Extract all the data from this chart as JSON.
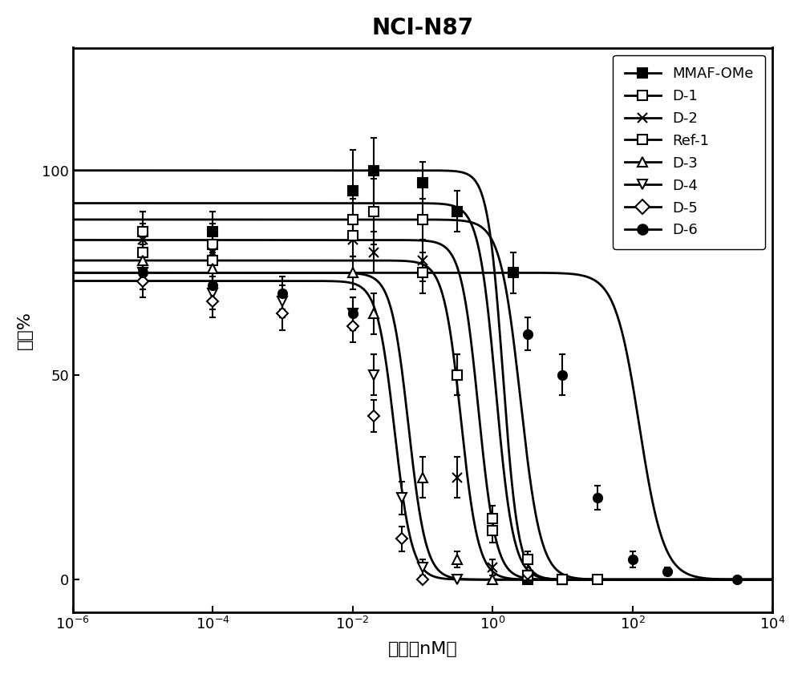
{
  "title": "NCI-N87",
  "xlabel": "浓度（nM）",
  "ylabel": "活力%",
  "xlim_log": [
    -6,
    4
  ],
  "ylim": [
    -8,
    130
  ],
  "yticks": [
    0,
    50,
    100
  ],
  "series": [
    {
      "name": "MMAF-OMe",
      "marker": "s",
      "filled": true,
      "EC50_log": 0.15,
      "Hill": 4.0,
      "top": 100,
      "bottom": 0,
      "data_x_log": [
        -5.0,
        -4.0,
        -2.0,
        -1.7,
        -1.0,
        -0.5,
        0.3,
        0.5,
        1.0
      ],
      "data_y": [
        85,
        85,
        95,
        100,
        97,
        90,
        75,
        0,
        0
      ],
      "yerr": [
        5,
        5,
        10,
        8,
        5,
        5,
        5,
        0,
        0
      ]
    },
    {
      "name": "D-1",
      "marker": "s",
      "filled": false,
      "EC50_log": 0.05,
      "Hill": 3.5,
      "top": 92,
      "bottom": 0,
      "data_x_log": [
        -5.0,
        -4.0,
        -2.0,
        -1.7,
        -1.0,
        -0.5,
        0.0,
        0.5,
        1.0
      ],
      "data_y": [
        85,
        82,
        88,
        90,
        88,
        50,
        12,
        1,
        0
      ],
      "yerr": [
        5,
        5,
        5,
        8,
        5,
        5,
        3,
        1,
        0
      ]
    },
    {
      "name": "D-2",
      "marker": "x",
      "filled": false,
      "EC50_log": -0.2,
      "Hill": 3.5,
      "top": 83,
      "bottom": 0,
      "data_x_log": [
        -5.0,
        -4.0,
        -2.0,
        -1.7,
        -1.0,
        -0.5,
        0.0,
        0.5
      ],
      "data_y": [
        83,
        80,
        83,
        80,
        78,
        25,
        3,
        0
      ],
      "yerr": [
        4,
        4,
        5,
        5,
        5,
        5,
        2,
        0
      ]
    },
    {
      "name": "Ref-1",
      "marker": "s",
      "filled": false,
      "EC50_log": 0.4,
      "Hill": 3.0,
      "top": 88,
      "bottom": 0,
      "data_x_log": [
        -5.0,
        -4.0,
        -2.0,
        -1.0,
        -0.5,
        0.0,
        0.5,
        1.0,
        1.5
      ],
      "data_y": [
        80,
        78,
        84,
        75,
        50,
        15,
        5,
        0,
        0
      ],
      "yerr": [
        5,
        5,
        5,
        5,
        5,
        3,
        2,
        0,
        0
      ]
    },
    {
      "name": "D-3",
      "marker": "^",
      "filled": false,
      "EC50_log": -0.45,
      "Hill": 3.5,
      "top": 78,
      "bottom": 0,
      "data_x_log": [
        -5.0,
        -4.0,
        -2.0,
        -1.7,
        -1.0,
        -0.5,
        0.0
      ],
      "data_y": [
        78,
        76,
        75,
        65,
        25,
        5,
        0
      ],
      "yerr": [
        4,
        4,
        4,
        5,
        5,
        2,
        0
      ]
    },
    {
      "name": "D-4",
      "marker": "v",
      "filled": false,
      "EC50_log": -1.2,
      "Hill": 3.5,
      "top": 75,
      "bottom": 0,
      "data_x_log": [
        -5.0,
        -4.0,
        -3.0,
        -2.0,
        -1.7,
        -1.3,
        -1.0,
        -0.5
      ],
      "data_y": [
        75,
        70,
        68,
        65,
        50,
        20,
        3,
        0
      ],
      "yerr": [
        4,
        4,
        4,
        4,
        5,
        4,
        2,
        0
      ]
    },
    {
      "name": "D-5",
      "marker": "D",
      "filled": false,
      "EC50_log": -1.4,
      "Hill": 3.5,
      "top": 73,
      "bottom": 0,
      "data_x_log": [
        -5.0,
        -4.0,
        -3.0,
        -2.0,
        -1.7,
        -1.3,
        -1.0
      ],
      "data_y": [
        73,
        68,
        65,
        62,
        40,
        10,
        0
      ],
      "yerr": [
        4,
        4,
        4,
        4,
        4,
        3,
        0
      ]
    },
    {
      "name": "D-6",
      "marker": "o",
      "filled": true,
      "EC50_log": 2.1,
      "Hill": 2.5,
      "top": 75,
      "bottom": 0,
      "data_x_log": [
        -5.0,
        -4.0,
        -3.0,
        -2.0,
        0.5,
        1.0,
        1.5,
        2.0,
        2.5,
        3.5
      ],
      "data_y": [
        75,
        72,
        70,
        65,
        60,
        50,
        20,
        5,
        2,
        0
      ],
      "yerr": [
        4,
        4,
        4,
        4,
        4,
        5,
        3,
        2,
        1,
        0
      ]
    }
  ],
  "background_color": "#ffffff",
  "border_color": "#000000",
  "fontsize_title": 20,
  "fontsize_axis": 16,
  "fontsize_tick": 13,
  "fontsize_legend": 13
}
